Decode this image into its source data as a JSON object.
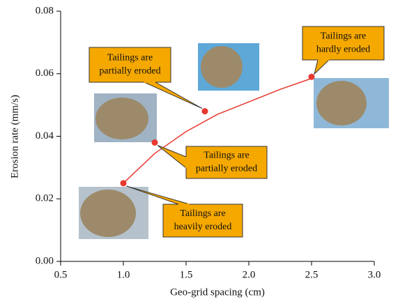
{
  "chart_data": {
    "type": "scatter",
    "x_label": "Geo-grid spacing (cm)",
    "y_label": "Erosion rate (mm/s)",
    "xlim": [
      0.5,
      3.0
    ],
    "xticks": [
      {
        "value": 0.5,
        "label": "0.5"
      },
      {
        "value": 1,
        "label": "1.0"
      },
      {
        "value": 1.5,
        "label": "1.5"
      },
      {
        "value": 2,
        "label": "2.0"
      },
      {
        "value": 2.5,
        "label": "2.5"
      },
      {
        "value": 3,
        "label": "3.0"
      }
    ],
    "ylim": [
      0,
      0.08
    ],
    "yticks": [
      {
        "value": 0,
        "label": "0.00"
      },
      {
        "value": 0.02,
        "label": "0.02"
      },
      {
        "value": 0.04,
        "label": "0.04"
      },
      {
        "value": 0.06,
        "label": "0.06"
      },
      {
        "value": 0.08,
        "label": "0.08"
      }
    ],
    "series": [
      {
        "color": "#e8382f",
        "x": [
          1.0,
          1.25,
          1.65,
          2.5
        ],
        "values": [
          0.025,
          0.038,
          0.048,
          0.059
        ]
      }
    ],
    "curve": {
      "color": "#e8382f",
      "x": [
        1.0,
        1.25,
        1.5,
        1.75,
        2.0,
        2.25,
        2.5
      ],
      "values": [
        0.025,
        0.0345,
        0.0415,
        0.047,
        0.051,
        0.055,
        0.0585
      ]
    },
    "annotations": [
      {
        "lines": [
          "Tailings are",
          "partially eroded"
        ]
      },
      {
        "lines": [
          "Tailings are",
          "hardly eroded"
        ]
      },
      {
        "lines": [
          "Tailings are",
          "partially eroded"
        ]
      },
      {
        "lines": [
          "Tailings are",
          "heavily eroded"
        ]
      }
    ],
    "annotation_color": "#f5a800"
  }
}
